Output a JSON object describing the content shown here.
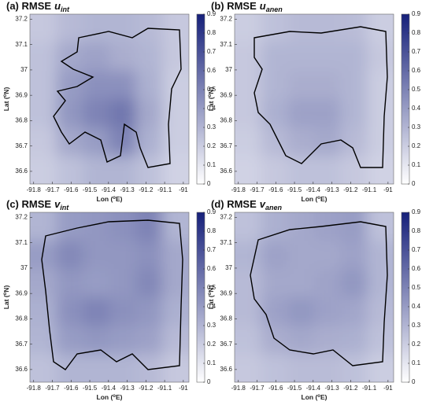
{
  "chart_data": [
    {
      "type": "heatmap",
      "title": "(a) RMSE",
      "title_var": "u",
      "title_sub": "int",
      "xlabel": {
        "pre": "Lon (",
        "sup": "o",
        "post": "E)"
      },
      "ylabel": {
        "pre": "Lat (",
        "sup": "o",
        "post": "N)"
      },
      "xlim": [
        -91.82,
        -90.97
      ],
      "ylim": [
        36.55,
        37.22
      ],
      "xticks": [
        -91.8,
        -91.7,
        -91.6,
        -91.5,
        -91.4,
        -91.3,
        -91.2,
        -91.1,
        -91
      ],
      "yticks": [
        36.6,
        36.7,
        36.8,
        36.9,
        37,
        37.1,
        37.2
      ],
      "clim": [
        0,
        0.9
      ],
      "cticks": [
        0,
        0.1,
        0.2,
        0.3,
        0.4,
        0.5,
        0.6,
        0.7,
        0.8,
        0.9
      ],
      "colormap": [
        "#ffffff",
        "#16207a"
      ],
      "z": [
        [
          0.22,
          0.28,
          0.3,
          0.3,
          0.28,
          0.22
        ],
        [
          0.25,
          0.35,
          0.38,
          0.33,
          0.3,
          0.22
        ],
        [
          0.25,
          0.4,
          0.45,
          0.45,
          0.32,
          0.2
        ],
        [
          0.25,
          0.42,
          0.5,
          0.55,
          0.35,
          0.2
        ],
        [
          0.22,
          0.35,
          0.4,
          0.5,
          0.32,
          0.2
        ],
        [
          0.2,
          0.25,
          0.3,
          0.3,
          0.25,
          0.18
        ]
      ]
    },
    {
      "type": "heatmap",
      "title": "(b) RMSE",
      "title_var": "u",
      "title_sub": "anen",
      "xlabel": {
        "pre": "Lon (",
        "sup": "o",
        "post": "E)"
      },
      "ylabel": {
        "pre": "Lat (",
        "sup": "o",
        "post": "N)"
      },
      "xlim": [
        -91.82,
        -90.97
      ],
      "ylim": [
        36.55,
        37.22
      ],
      "xticks": [
        -91.8,
        -91.7,
        -91.6,
        -91.5,
        -91.4,
        -91.3,
        -91.2,
        -91.1,
        -91
      ],
      "yticks": [
        36.6,
        36.7,
        36.8,
        36.9,
        37,
        37.1,
        37.2
      ],
      "clim": [
        0,
        0.9
      ],
      "cticks": [
        0,
        0.1,
        0.2,
        0.3,
        0.4,
        0.5,
        0.6,
        0.7,
        0.8,
        0.9
      ],
      "colormap": [
        "#ffffff",
        "#16207a"
      ],
      "z": [
        [
          0.2,
          0.25,
          0.28,
          0.28,
          0.27,
          0.2
        ],
        [
          0.22,
          0.3,
          0.3,
          0.3,
          0.3,
          0.22
        ],
        [
          0.22,
          0.3,
          0.33,
          0.33,
          0.3,
          0.2
        ],
        [
          0.22,
          0.32,
          0.38,
          0.38,
          0.3,
          0.2
        ],
        [
          0.2,
          0.28,
          0.33,
          0.35,
          0.28,
          0.2
        ],
        [
          0.18,
          0.22,
          0.25,
          0.25,
          0.22,
          0.18
        ]
      ]
    },
    {
      "type": "heatmap",
      "title": "(c) RMSE",
      "title_var": "v",
      "title_sub": "int",
      "xlabel": {
        "pre": "Lon (",
        "sup": "o",
        "post": "E)"
      },
      "ylabel": {
        "pre": "Lat (",
        "sup": "o",
        "post": "N)"
      },
      "xlim": [
        -91.82,
        -90.97
      ],
      "ylim": [
        36.55,
        37.22
      ],
      "xticks": [
        -91.8,
        -91.7,
        -91.6,
        -91.5,
        -91.4,
        -91.3,
        -91.2,
        -91.1,
        -91
      ],
      "yticks": [
        36.6,
        36.7,
        36.8,
        36.9,
        37,
        37.1,
        37.2
      ],
      "clim": [
        0,
        0.9
      ],
      "cticks": [
        0,
        0.1,
        0.2,
        0.3,
        0.4,
        0.5,
        0.6,
        0.7,
        0.8,
        0.9
      ],
      "colormap": [
        "#ffffff",
        "#16207a"
      ],
      "z": [
        [
          0.3,
          0.4,
          0.42,
          0.45,
          0.5,
          0.3
        ],
        [
          0.4,
          0.48,
          0.42,
          0.42,
          0.45,
          0.35
        ],
        [
          0.35,
          0.42,
          0.4,
          0.42,
          0.48,
          0.35
        ],
        [
          0.32,
          0.45,
          0.5,
          0.45,
          0.42,
          0.32
        ],
        [
          0.3,
          0.4,
          0.42,
          0.4,
          0.38,
          0.28
        ],
        [
          0.25,
          0.3,
          0.3,
          0.3,
          0.28,
          0.22
        ]
      ]
    },
    {
      "type": "heatmap",
      "title": "(d) RMSE",
      "title_var": "v",
      "title_sub": "anen",
      "xlabel": {
        "pre": "Lon (",
        "sup": "o",
        "post": "E)"
      },
      "ylabel": {
        "pre": "Lat (",
        "sup": "o",
        "post": "N)"
      },
      "xlim": [
        -91.82,
        -90.97
      ],
      "ylim": [
        36.55,
        37.22
      ],
      "xticks": [
        -91.8,
        -91.7,
        -91.6,
        -91.5,
        -91.4,
        -91.3,
        -91.2,
        -91.1,
        -91
      ],
      "yticks": [
        36.6,
        36.7,
        36.8,
        36.9,
        37,
        37.1,
        37.2
      ],
      "clim": [
        0,
        0.9
      ],
      "cticks": [
        0,
        0.1,
        0.2,
        0.3,
        0.4,
        0.5,
        0.6,
        0.7,
        0.8,
        0.9
      ],
      "colormap": [
        "#ffffff",
        "#16207a"
      ],
      "z": [
        [
          0.25,
          0.32,
          0.35,
          0.38,
          0.4,
          0.25
        ],
        [
          0.3,
          0.38,
          0.35,
          0.35,
          0.38,
          0.3
        ],
        [
          0.28,
          0.35,
          0.35,
          0.37,
          0.42,
          0.3
        ],
        [
          0.28,
          0.38,
          0.42,
          0.38,
          0.36,
          0.28
        ],
        [
          0.25,
          0.33,
          0.35,
          0.33,
          0.32,
          0.25
        ],
        [
          0.22,
          0.25,
          0.27,
          0.27,
          0.25,
          0.2
        ]
      ]
    }
  ]
}
